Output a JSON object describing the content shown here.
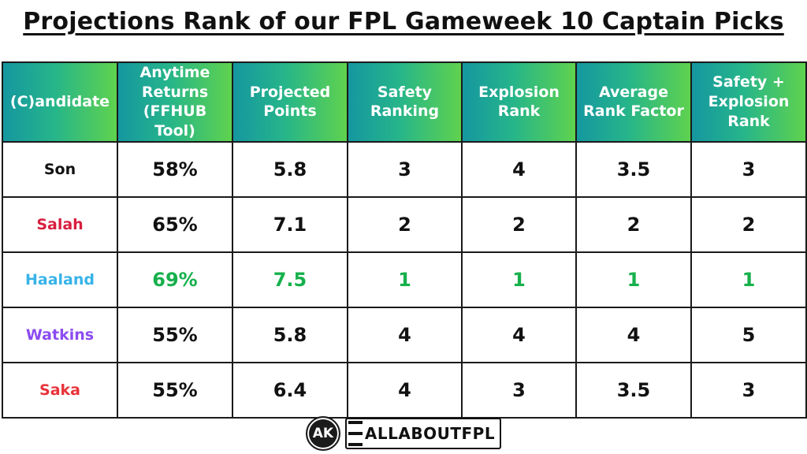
{
  "title": "Projections Rank of our FPL Gameweek 10 Captain Picks",
  "headers": [
    [
      "(C)andidate"
    ],
    [
      "Anytime",
      "Returns",
      "(FFHUB Tool)"
    ],
    [
      "Projected",
      "Points"
    ],
    [
      "Safety",
      "Ranking"
    ],
    [
      "Explosion",
      "Rank"
    ],
    [
      "Average",
      "Rank Factor"
    ],
    [
      "Safety +",
      "Explosion",
      "Rank"
    ]
  ],
  "rows": [
    {
      "name": "Son",
      "name_color": "#111111",
      "highlight": false,
      "cells": [
        "58%",
        "5.8",
        "3",
        "4",
        "3.5",
        "3"
      ]
    },
    {
      "name": "Salah",
      "name_color": "#d81f3e",
      "highlight": false,
      "cells": [
        "65%",
        "7.1",
        "2",
        "2",
        "2",
        "2"
      ]
    },
    {
      "name": "Haaland",
      "name_color": "#36b3e8",
      "highlight": true,
      "cells": [
        "69%",
        "7.5",
        "1",
        "1",
        "1",
        "1"
      ]
    },
    {
      "name": "Watkins",
      "name_color": "#8b4bf0",
      "highlight": false,
      "cells": [
        "55%",
        "5.8",
        "4",
        "4",
        "4",
        "5"
      ]
    },
    {
      "name": "Saka",
      "name_color": "#e8323a",
      "highlight": false,
      "cells": [
        "55%",
        "6.4",
        "4",
        "3",
        "3.5",
        "3"
      ]
    }
  ],
  "colors": {
    "header_gradient_start": "#1597a0",
    "header_gradient_end": "#5fd24e",
    "highlight_value": "#17b04c"
  },
  "footer": {
    "logo_initials": "AK",
    "brand": "ALLABOUTFPL"
  }
}
